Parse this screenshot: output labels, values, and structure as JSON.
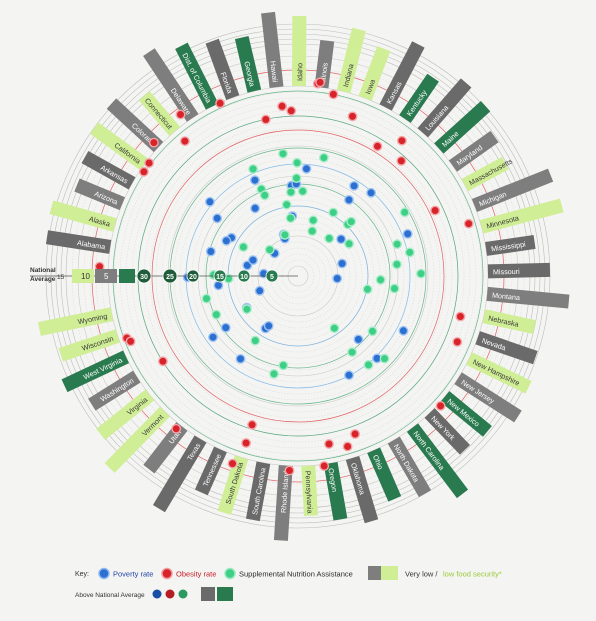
{
  "chart_data": {
    "type": "radial",
    "states": [
      {
        "name": "Alabama",
        "food_security": "very_low",
        "above_average": true
      },
      {
        "name": "Alaska",
        "food_security": "low",
        "above_average": false
      },
      {
        "name": "Arizona",
        "food_security": "very_low",
        "above_average": false
      },
      {
        "name": "Arkansas",
        "food_security": "very_low",
        "above_average": true
      },
      {
        "name": "California",
        "food_security": "low",
        "above_average": false
      },
      {
        "name": "Colorado",
        "food_security": "very_low",
        "above_average": false
      },
      {
        "name": "Connecticut",
        "food_security": "low",
        "above_average": false
      },
      {
        "name": "Delaware",
        "food_security": "very_low",
        "above_average": false
      },
      {
        "name": "Dist. of Columbia",
        "food_security": "low",
        "above_average": true
      },
      {
        "name": "Florida",
        "food_security": "very_low",
        "above_average": true
      },
      {
        "name": "Georgia",
        "food_security": "low",
        "above_average": true
      },
      {
        "name": "Hawaii",
        "food_security": "very_low",
        "above_average": false
      },
      {
        "name": "Idaho",
        "food_security": "low",
        "above_average": false
      },
      {
        "name": "Illinois",
        "food_security": "very_low",
        "above_average": false
      },
      {
        "name": "Indiana",
        "food_security": "low",
        "above_average": false
      },
      {
        "name": "Iowa",
        "food_security": "low",
        "above_average": false
      },
      {
        "name": "Kansas",
        "food_security": "very_low",
        "above_average": true
      },
      {
        "name": "Kentucky",
        "food_security": "low",
        "above_average": true
      },
      {
        "name": "Louisiana",
        "food_security": "very_low",
        "above_average": true
      },
      {
        "name": "Maine",
        "food_security": "low",
        "above_average": true
      },
      {
        "name": "Maryland",
        "food_security": "very_low",
        "above_average": false
      },
      {
        "name": "Massachusetts",
        "food_security": "low",
        "above_average": false
      },
      {
        "name": "Michigan",
        "food_security": "very_low",
        "above_average": false
      },
      {
        "name": "Minnesota",
        "food_security": "low",
        "above_average": false
      },
      {
        "name": "Mississippi",
        "food_security": "very_low",
        "above_average": true
      },
      {
        "name": "Missouri",
        "food_security": "very_low",
        "above_average": true
      },
      {
        "name": "Montana",
        "food_security": "very_low",
        "above_average": false
      },
      {
        "name": "Nebraska",
        "food_security": "low",
        "above_average": false
      },
      {
        "name": "Nevada",
        "food_security": "very_low",
        "above_average": true
      },
      {
        "name": "New Hampshire",
        "food_security": "low",
        "above_average": false
      },
      {
        "name": "New Jersey",
        "food_security": "very_low",
        "above_average": false
      },
      {
        "name": "New Mexico",
        "food_security": "low",
        "above_average": true
      },
      {
        "name": "New York",
        "food_security": "very_low",
        "above_average": true
      },
      {
        "name": "North Carolina",
        "food_security": "low",
        "above_average": true
      },
      {
        "name": "North Dakota",
        "food_security": "very_low",
        "above_average": false
      },
      {
        "name": "Ohio",
        "food_security": "low",
        "above_average": true
      },
      {
        "name": "Oklahoma",
        "food_security": "very_low",
        "above_average": true
      },
      {
        "name": "Oregon",
        "food_security": "low",
        "above_average": true
      },
      {
        "name": "Pennsylvania",
        "food_security": "low",
        "above_average": false
      },
      {
        "name": "Rhode Island",
        "food_security": "very_low",
        "above_average": false
      },
      {
        "name": "South Carolina",
        "food_security": "very_low",
        "above_average": true
      },
      {
        "name": "South Dakota",
        "food_security": "low",
        "above_average": false
      },
      {
        "name": "Tennessee",
        "food_security": "very_low",
        "above_average": true
      },
      {
        "name": "Texas",
        "food_security": "very_low",
        "above_average": true
      },
      {
        "name": "Utah",
        "food_security": "very_low",
        "above_average": false
      },
      {
        "name": "Vermont",
        "food_security": "low",
        "above_average": false
      },
      {
        "name": "Virginia",
        "food_security": "low",
        "above_average": false
      },
      {
        "name": "Washington",
        "food_security": "very_low",
        "above_average": false
      },
      {
        "name": "West Virginia",
        "food_security": "low",
        "above_average": true
      },
      {
        "name": "Wisconsin",
        "food_security": "low",
        "above_average": false
      },
      {
        "name": "Wyoming",
        "food_security": "low",
        "above_average": false
      }
    ],
    "national_average": {
      "label_line1": "National",
      "label_line2": "Average",
      "scale_ticks": [
        "15",
        "10",
        "5"
      ],
      "ring_ticks": [
        "30",
        "25",
        "20",
        "15",
        "10",
        "5"
      ]
    },
    "series_colors": {
      "poverty": "#2b6fd0",
      "obesity": "#d8232a",
      "snap": "#3dcf86",
      "very_low": "#7e7e7e",
      "low": "#cfee95",
      "above_dark_green": "#2a7a50"
    }
  },
  "key": {
    "title": "Key:",
    "poverty_label": "Poverty rate",
    "obesity_label": "Obesity rate",
    "snap_label": "Supplemental Nutrition Assistance",
    "very_low_label": "Very low /",
    "low_label": "low food security*",
    "above_label": "Above National Average"
  }
}
